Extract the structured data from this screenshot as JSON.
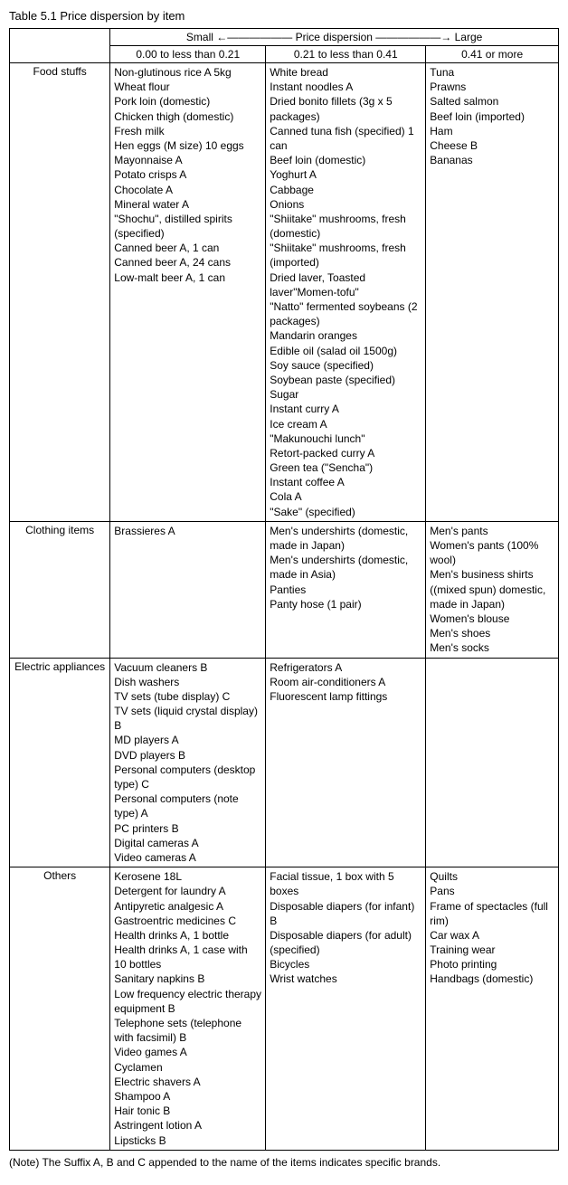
{
  "title": "Table 5.1 Price dispersion by item",
  "header": {
    "spectrum": "Small ←—————— Price dispersion ——————→ Large",
    "ranges": [
      "0.00 to less than 0.21",
      "0.21 to less than 0.41",
      "0.41 or more"
    ]
  },
  "rows": [
    {
      "label": "Food stuffs",
      "cells": [
        [
          "Non-glutinous rice A 5kg",
          "Wheat flour",
          "Pork loin (domestic)",
          "Chicken thigh (domestic)",
          "Fresh milk",
          "Hen eggs (M size) 10 eggs",
          "Mayonnaise A",
          "Potato crisps A",
          "Chocolate A",
          "Mineral water A",
          "\"Shochu\", distilled spirits (specified)",
          "Canned beer A, 1 can",
          "Canned beer A, 24 cans",
          "Low-malt beer A, 1 can"
        ],
        [
          "White bread",
          "Instant noodles A",
          "Dried bonito fillets (3g x 5 packages)",
          "Canned tuna fish (specified) 1 can",
          "Beef loin (domestic)",
          "Yoghurt A",
          "Cabbage",
          "Onions",
          "\"Shiitake\" mushrooms, fresh (domestic)",
          "\"Shiitake\" mushrooms, fresh (imported)",
          "Dried laver, Toasted laver\"Momen-tofu\"",
          "\"Natto\" fermented soybeans (2 packages)",
          "Mandarin oranges",
          "Edible oil (salad oil 1500g)",
          "Soy sauce (specified)",
          "Soybean paste (specified)",
          "Sugar",
          "Instant curry A",
          "Ice cream A",
          "\"Makunouchi lunch\"",
          "Retort-packed curry A",
          "Green tea (\"Sencha\")",
          "Instant coffee A",
          "Cola A",
          "\"Sake\" (specified)"
        ],
        [
          "Tuna",
          "Prawns",
          "Salted salmon",
          "Beef loin (imported)",
          "Ham",
          "Cheese B",
          "Bananas"
        ]
      ]
    },
    {
      "label": "Clothing items",
      "cells": [
        [
          "Brassieres A"
        ],
        [
          "Men's undershirts (domestic, made in Japan)",
          "Men's undershirts (domestic, made in Asia)",
          "Panties",
          "Panty hose (1 pair)"
        ],
        [
          "Men's pants",
          "Women's pants (100% wool)",
          "Men's business shirts ((mixed spun) domestic, made in Japan)",
          "Women's blouse",
          "Men's shoes",
          "Men's socks"
        ]
      ]
    },
    {
      "label": "Electric appliances",
      "cells": [
        [
          "Vacuum cleaners B",
          "Dish washers",
          "TV sets (tube display) C",
          "TV sets (liquid crystal display) B",
          "MD players A",
          "DVD players B",
          "Personal computers (desktop type) C",
          "Personal computers (note type) A",
          "PC printers B",
          "Digital cameras A",
          "Video cameras A"
        ],
        [
          "Refrigerators A",
          "Room air-conditioners A",
          "Fluorescent lamp fittings"
        ],
        []
      ]
    },
    {
      "label": "Others",
      "cells": [
        [
          "Kerosene 18L",
          "Detergent for laundry A",
          "Antipyretic analgesic A",
          "Gastroentric medicines C",
          "Health drinks A, 1 bottle",
          "Health drinks A, 1 case with 10 bottles",
          "Sanitary napkins B",
          "Low frequency electric therapy equipment B",
          "Telephone sets (telephone with facsimil) B",
          "Video games A",
          "Cyclamen",
          "Electric shavers A",
          "Shampoo A",
          "Hair tonic B",
          "Astringent lotion A",
          "Lipsticks B"
        ],
        [
          "Facial tissue, 1 box with 5 boxes",
          "Disposable diapers (for infant) B",
          "Disposable diapers (for adult) (specified)",
          "Bicycles",
          "Wrist watches"
        ],
        [
          "Quilts",
          "Pans",
          "Frame of spectacles (full rim)",
          "Car wax A",
          "Training wear",
          "Photo printing",
          "Handbags (domestic)"
        ]
      ]
    }
  ],
  "note": "(Note) The Suffix A, B and C appended to the name of the items indicates specific brands."
}
